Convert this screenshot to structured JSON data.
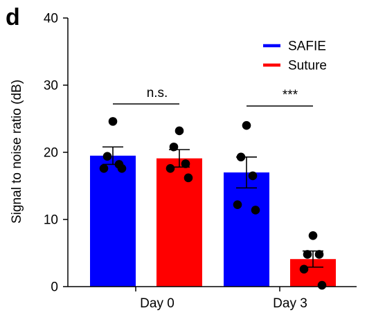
{
  "panel_label": "d",
  "chart_data": {
    "type": "bar",
    "ylabel": "Signal to noise ratio (dB)",
    "xlabel": "",
    "ylim": [
      0,
      40
    ],
    "yticks": [
      0,
      10,
      20,
      30,
      40
    ],
    "categories": [
      "Day 0",
      "Day 3"
    ],
    "series": [
      {
        "name": "SAFIE",
        "color": "#0000ff",
        "values": [
          19.5,
          17.0
        ],
        "errors": [
          1.3,
          2.3
        ],
        "points": [
          [
            24.6,
            19.4,
            18.2,
            17.6,
            17.6
          ],
          [
            24.0,
            19.3,
            16.5,
            12.2,
            11.4
          ]
        ]
      },
      {
        "name": "Suture",
        "color": "#ff0000",
        "values": [
          19.1,
          4.1
        ],
        "errors": [
          1.3,
          1.2
        ],
        "points": [
          [
            23.2,
            20.8,
            18.3,
            17.6,
            16.2
          ],
          [
            7.6,
            4.8,
            4.8,
            2.6,
            0.2
          ]
        ]
      }
    ],
    "significance": [
      {
        "category": "Day 0",
        "label": "n.s.",
        "y": 27.2
      },
      {
        "category": "Day 3",
        "label": "***",
        "y": 26.9
      }
    ],
    "legend_position": "top-right",
    "grid": false
  }
}
